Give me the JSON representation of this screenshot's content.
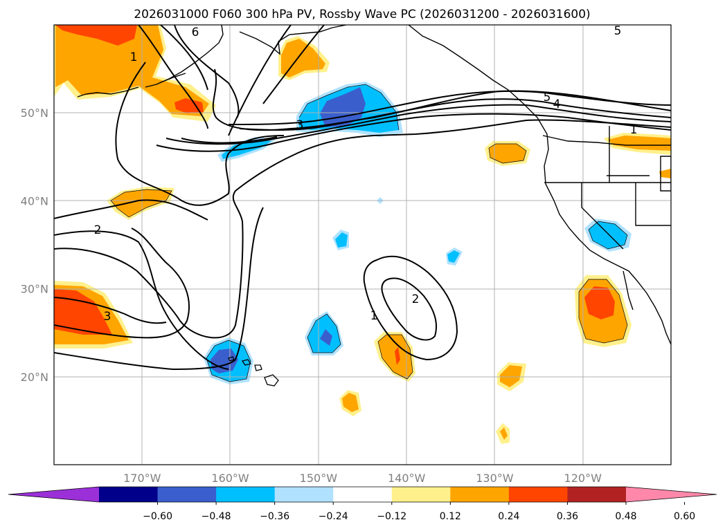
{
  "title": "2026031000 F060 300 hPa PV, Rossby Wave PC (2026031200 - 2026031600)",
  "lon_ticks": [
    {
      "label": "170°W",
      "lon": -170
    },
    {
      "label": "160°W",
      "lon": -160
    },
    {
      "label": "150°W",
      "lon": -150
    },
    {
      "label": "140°W",
      "lon": -140
    },
    {
      "label": "130°W",
      "lon": -130
    },
    {
      "label": "120°W",
      "lon": -120
    }
  ],
  "lat_ticks": [
    {
      "label": "50°N",
      "lat": 50
    },
    {
      "label": "40°N",
      "lat": 40
    },
    {
      "label": "30°N",
      "lat": 30
    },
    {
      "label": "20°N",
      "lat": 20
    }
  ],
  "map_extent": {
    "lon_min": -180,
    "lon_max": -110,
    "lat_min": 10,
    "lat_max": 60
  },
  "colorbar": {
    "colors": [
      "#9b30d9",
      "#00008b",
      "#3a5fcd",
      "#00bfff",
      "#b0e2ff",
      "#ffffff",
      "#fff08c",
      "#ffa500",
      "#ff4500",
      "#b22222",
      "#ff88aa"
    ],
    "tick_labels": [
      "−0.60",
      "−0.48",
      "−0.36",
      "−0.24",
      "−0.12",
      "0.12",
      "0.24",
      "0.36",
      "0.48",
      "0.60"
    ]
  },
  "contour_labels": [
    "6",
    "1",
    "5",
    "5",
    "4",
    "1",
    "3",
    "2",
    "3",
    "2",
    "1"
  ],
  "colors": {
    "contour": "#000000",
    "grid": "#b0b0b0",
    "axis_label": "#7f7f7f"
  }
}
